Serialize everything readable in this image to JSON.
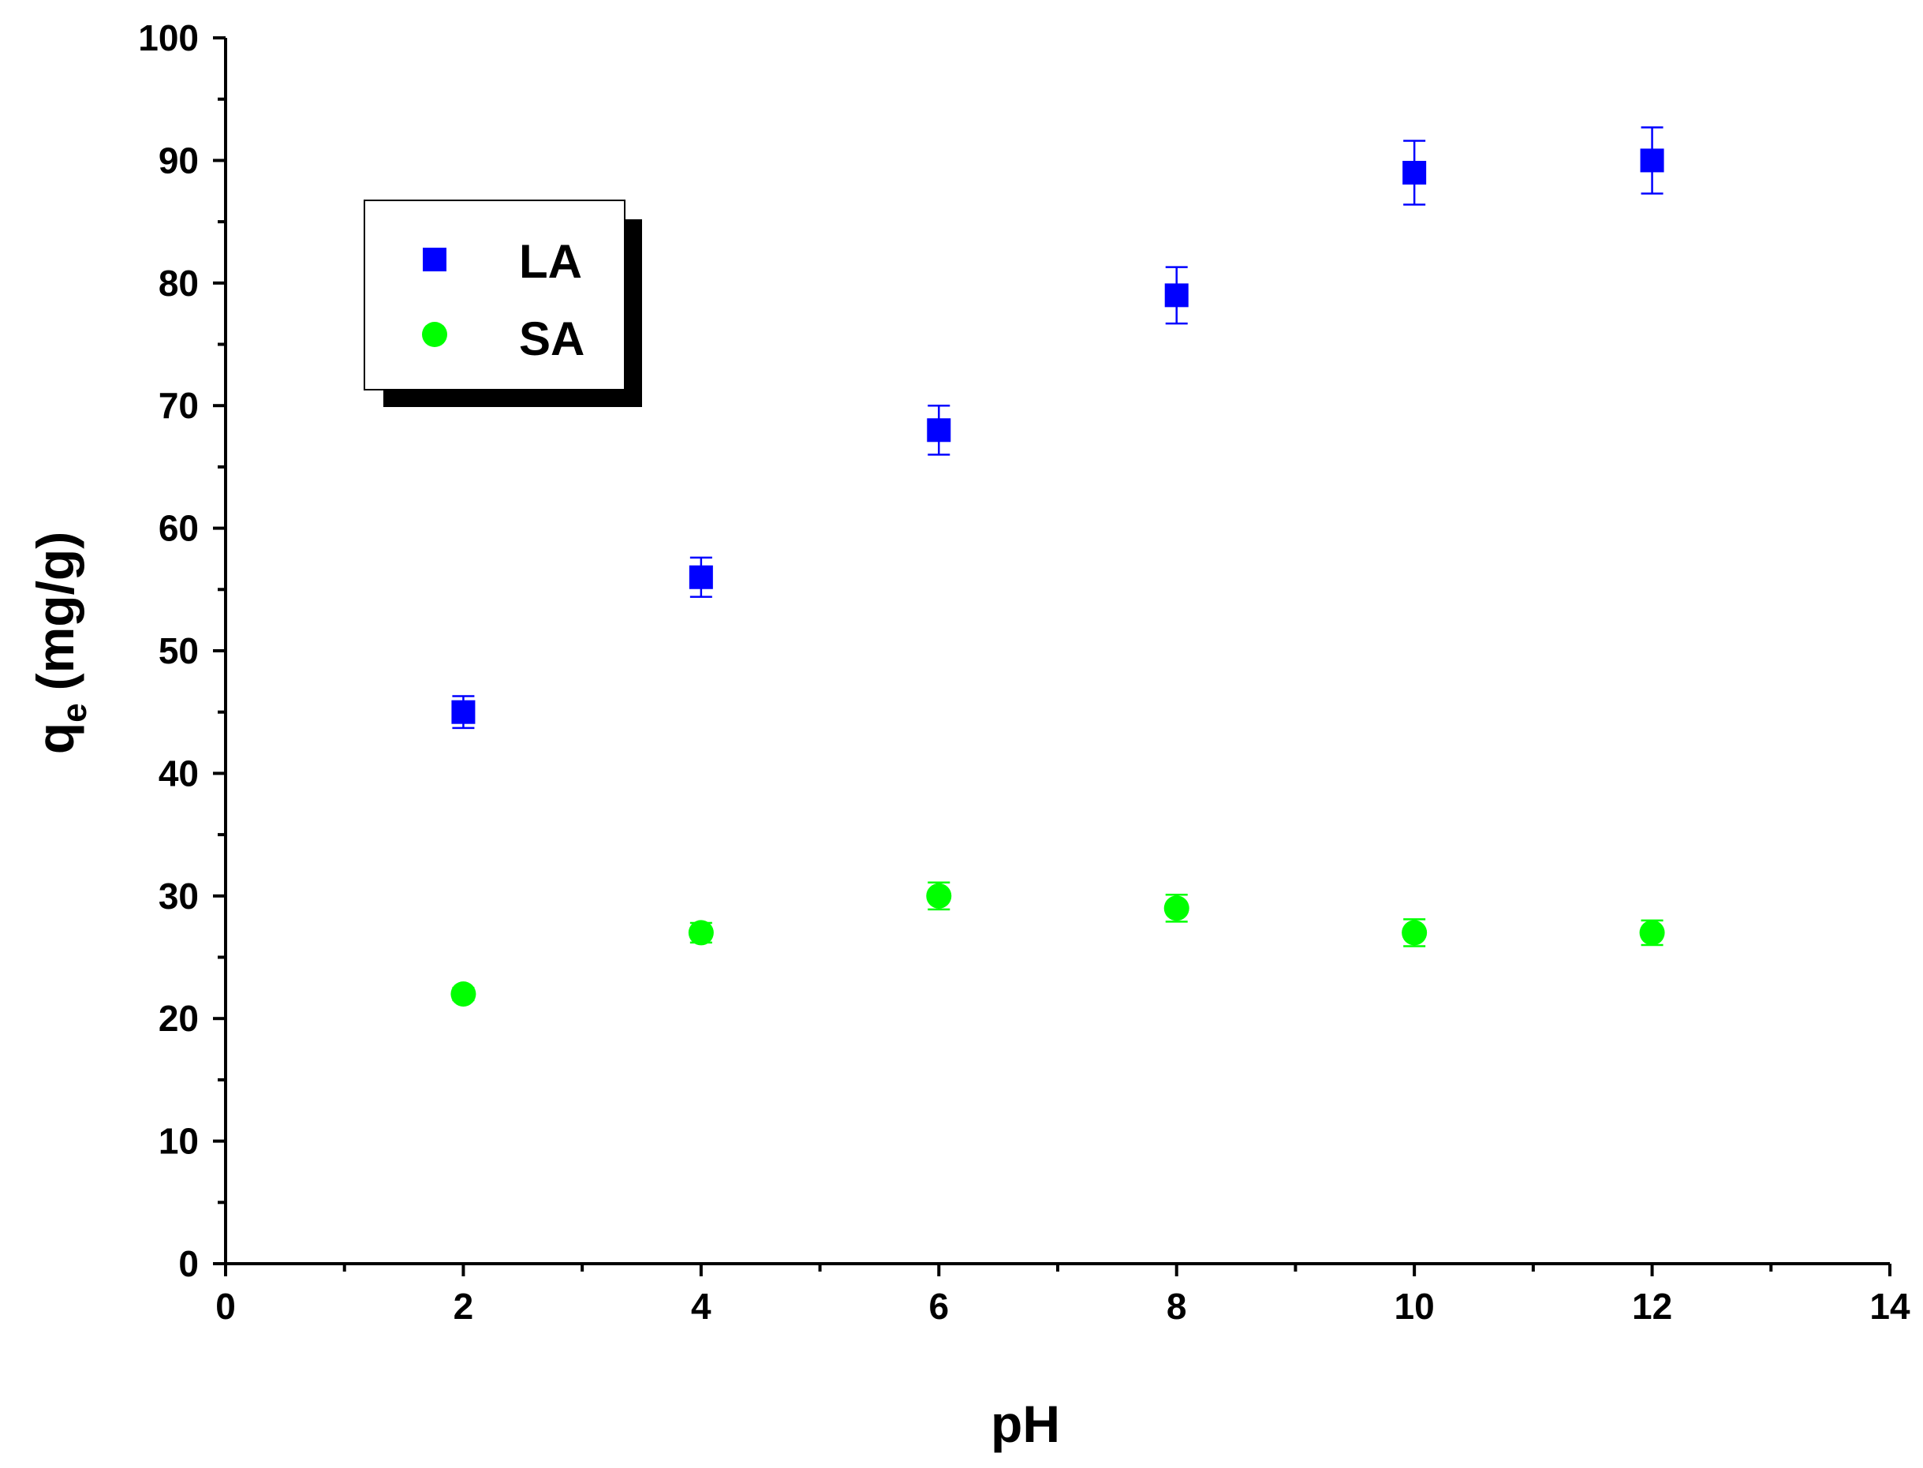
{
  "chart_data": {
    "type": "scatter",
    "xlabel": "pH",
    "ylabel_main": "q",
    "ylabel_sub": "e",
    "ylabel_unit": "(mg/g)",
    "xlim": [
      0,
      14
    ],
    "ylim": [
      0,
      100
    ],
    "x_ticks": [
      "0",
      "2",
      "4",
      "6",
      "8",
      "10",
      "12",
      "14"
    ],
    "y_ticks": [
      "0",
      "10",
      "20",
      "30",
      "40",
      "50",
      "60",
      "70",
      "80",
      "90",
      "100"
    ],
    "grid": false,
    "legend_position": "top-left",
    "series": [
      {
        "name": "LA",
        "marker": "square",
        "color": "#0000ff",
        "x": [
          2,
          4,
          6,
          8,
          10,
          12
        ],
        "y": [
          45,
          56,
          68,
          79,
          89,
          90
        ],
        "error": [
          1.3,
          1.6,
          2.0,
          2.3,
          2.6,
          2.7
        ]
      },
      {
        "name": "SA",
        "marker": "circle",
        "color": "#00ff00",
        "x": [
          2,
          4,
          6,
          8,
          10,
          12
        ],
        "y": [
          22,
          27,
          30,
          29,
          27,
          27
        ],
        "error": [
          0.5,
          0.8,
          1.1,
          1.1,
          1.1,
          1.0
        ]
      }
    ]
  }
}
